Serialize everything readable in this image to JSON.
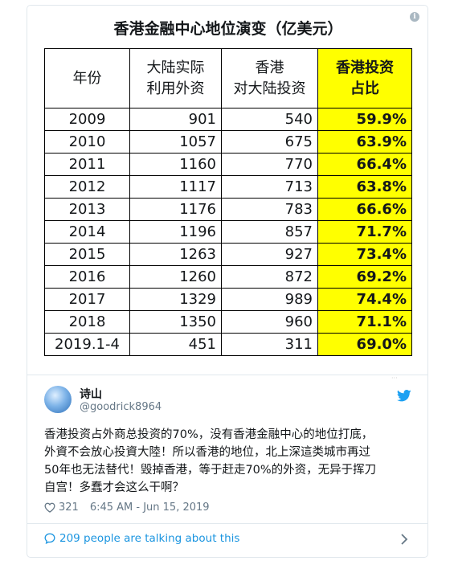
{
  "table": {
    "title": "香港金融中心地位演变（亿美元）",
    "headers": {
      "year": "年份",
      "fdi_line1": "大陆实际",
      "fdi_line2": "利用外资",
      "hk_line1": "香港",
      "hk_line2": "对大陆投资",
      "share_line1": "香港投资",
      "share_line2": "占比"
    },
    "rows": [
      {
        "year": "2009",
        "fdi": "901",
        "hk": "540",
        "share": "59.9%"
      },
      {
        "year": "2010",
        "fdi": "1057",
        "hk": "675",
        "share": "63.9%"
      },
      {
        "year": "2011",
        "fdi": "1160",
        "hk": "770",
        "share": "66.4%"
      },
      {
        "year": "2012",
        "fdi": "1117",
        "hk": "713",
        "share": "63.8%"
      },
      {
        "year": "2013",
        "fdi": "1176",
        "hk": "783",
        "share": "66.6%"
      },
      {
        "year": "2014",
        "fdi": "1196",
        "hk": "857",
        "share": "71.7%"
      },
      {
        "year": "2015",
        "fdi": "1263",
        "hk": "927",
        "share": "73.4%"
      },
      {
        "year": "2016",
        "fdi": "1260",
        "hk": "872",
        "share": "69.2%"
      },
      {
        "year": "2017",
        "fdi": "1329",
        "hk": "989",
        "share": "74.4%"
      },
      {
        "year": "2018",
        "fdi": "1350",
        "hk": "960",
        "share": "71.1%"
      },
      {
        "year": "2019.1-4",
        "fdi": "451",
        "hk": "311",
        "share": "69.0%"
      }
    ]
  },
  "tweet": {
    "author_name": "诗山",
    "handle": "@goodrick8964",
    "text_lines": [
      "香港投资占外商总投资的70%，没有香港金融中心的地位打底，",
      "外資不会放心投資大陸！所以香港的地位，北上深這类城市再过",
      "50年也无法替代！毁掉香港，等于赶走70%的外资，无异于挥刀",
      "自宫！多蠢才会这么干啊？"
    ],
    "likes": "321",
    "timestamp": "6:45 AM - Jun 15, 2019",
    "conversation": "209 people are talking about this"
  },
  "icons": {
    "info": "info-icon",
    "twitter": "twitter-bird-icon",
    "like": "heart-icon",
    "reply": "speech-bubble-icon",
    "more": "chevron-right-icon"
  },
  "colors": {
    "highlight": "#ffff00",
    "twitter_blue": "#1da1f2",
    "link_blue": "#1b95e0",
    "muted": "#657786"
  }
}
